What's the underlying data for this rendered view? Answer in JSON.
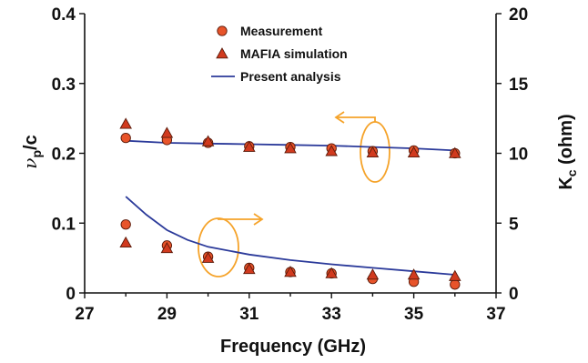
{
  "chart_data": {
    "type": "scatter",
    "xlabel": "Frequency (GHz)",
    "ylabel_left": {
      "main": "ν",
      "sub": "p",
      "tail": "/c"
    },
    "ylabel_right": {
      "main": "K",
      "sub": "c",
      "tail": " (ohm)"
    },
    "xlim": [
      27,
      37
    ],
    "ylim_left": [
      0,
      0.4
    ],
    "ylim_right": [
      0,
      20
    ],
    "x_ticks": [
      "27",
      "29",
      "31",
      "33",
      "35",
      "37"
    ],
    "y_left_ticks": [
      "0",
      "0.1",
      "0.2",
      "0.3",
      "0.4"
    ],
    "y_right_ticks": [
      "0",
      "5",
      "10",
      "15",
      "20"
    ],
    "grid": false,
    "legend_position": "top-center",
    "colors": {
      "marker_fill": "#e8542a",
      "marker_stroke": "#5a1a0a",
      "analysis_line": "#2b3a9a",
      "annotation": "#f5a32a"
    },
    "series": [
      {
        "name": "Measurement",
        "marker": "circle",
        "axis": "left",
        "x": [
          28,
          29,
          30,
          31,
          32,
          33,
          34,
          35,
          36
        ],
        "y": [
          0.222,
          0.219,
          0.215,
          0.21,
          0.209,
          0.207,
          0.203,
          0.204,
          0.2
        ]
      },
      {
        "name": "MAFIA simulation",
        "marker": "triangle",
        "axis": "left",
        "x": [
          28,
          29,
          30,
          31,
          32,
          33,
          34,
          35,
          36
        ],
        "y": [
          0.242,
          0.229,
          0.217,
          0.209,
          0.207,
          0.203,
          0.201,
          0.201,
          0.2
        ]
      },
      {
        "name": "Present analysis",
        "marker": "line",
        "axis": "left",
        "x": [
          28,
          29,
          30,
          31,
          32,
          33,
          34,
          35,
          36
        ],
        "y": [
          0.218,
          0.215,
          0.214,
          0.213,
          0.212,
          0.211,
          0.209,
          0.207,
          0.204
        ]
      },
      {
        "marker": "circle",
        "axis": "right",
        "x": [
          28,
          29,
          30,
          31,
          32,
          33,
          34,
          35,
          36
        ],
        "y": [
          4.9,
          3.4,
          2.6,
          1.8,
          1.5,
          1.4,
          1.0,
          0.8,
          0.6
        ]
      },
      {
        "marker": "triangle",
        "axis": "right",
        "x": [
          28,
          29,
          30,
          31,
          32,
          33,
          34,
          35,
          36
        ],
        "y": [
          3.6,
          3.2,
          2.5,
          1.7,
          1.5,
          1.4,
          1.3,
          1.3,
          1.2
        ]
      },
      {
        "marker": "line",
        "axis": "right",
        "x": [
          28,
          28.5,
          29,
          29.5,
          30,
          31,
          32,
          33,
          34,
          35,
          36
        ],
        "y": [
          6.9,
          5.6,
          4.5,
          3.8,
          3.3,
          2.75,
          2.35,
          2.05,
          1.8,
          1.55,
          1.3
        ]
      }
    ]
  }
}
